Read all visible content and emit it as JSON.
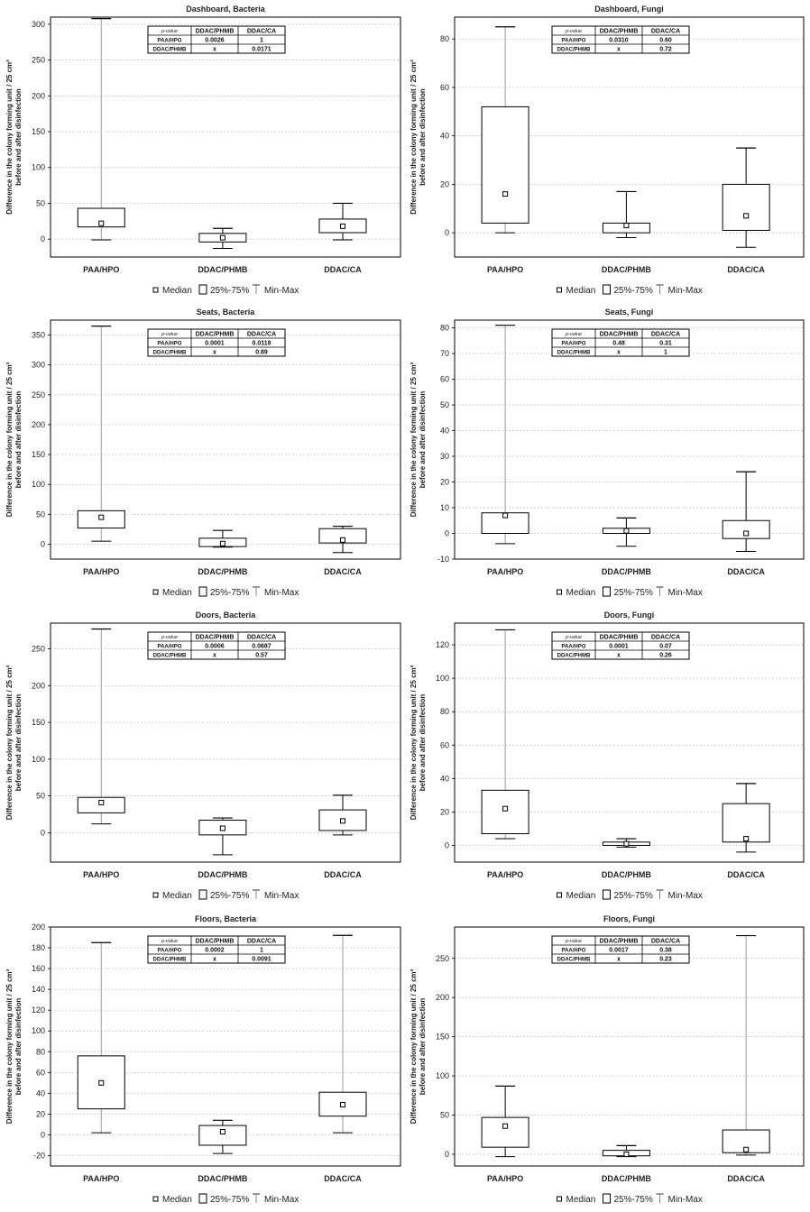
{
  "figure": {
    "ylabel_line1": "Difference in the colony forming unit / 25 cm²",
    "ylabel_line2": "before and after disinfection",
    "legend": {
      "median": "Median",
      "box": "25%-75%",
      "whisker": "Min-Max"
    },
    "pvalue_header": "p-value",
    "colors": {
      "frame": "#000000",
      "grid": "#bdbdbd",
      "box_stroke": "#000000",
      "whisker_light": "#9a9a9a"
    }
  },
  "chart_data": [
    {
      "type": "box",
      "title": "Dashboard, Bacteria",
      "categories": [
        "PAA/HPO",
        "DDAC/PHMB",
        "DDAC/CA"
      ],
      "ylim": [
        -25,
        310
      ],
      "yticks": [
        0,
        50,
        100,
        150,
        200,
        250,
        300
      ],
      "boxes": [
        {
          "min": -1,
          "q1": 17,
          "median": 22,
          "q3": 43,
          "max": 308
        },
        {
          "min": -13,
          "q1": -4,
          "median": 2,
          "q3": 8,
          "max": 15
        },
        {
          "min": -1,
          "q1": 9,
          "median": 18,
          "q3": 28,
          "max": 50
        }
      ],
      "pvalue_table": {
        "cols": [
          "DDAC/PHMB",
          "DDAC/CA"
        ],
        "rows": [
          {
            "label": "PAA/HPO",
            "values": [
              "0.0026",
              "1"
            ]
          },
          {
            "label": "DDAC/PHMB",
            "values": [
              "x",
              "0.0171"
            ]
          }
        ]
      }
    },
    {
      "type": "box",
      "title": "Dashboard, Fungi",
      "categories": [
        "PAA/HPO",
        "DDAC/PHMB",
        "DDAC/CA"
      ],
      "ylim": [
        -10,
        89
      ],
      "yticks": [
        0,
        20,
        40,
        60,
        80
      ],
      "boxes": [
        {
          "min": 0,
          "q1": 4,
          "median": 16,
          "q3": 52,
          "max": 85
        },
        {
          "min": -2,
          "q1": 0,
          "median": 3,
          "q3": 4,
          "max": 17
        },
        {
          "min": -6,
          "q1": 1,
          "median": 7,
          "q3": 20,
          "max": 35
        }
      ],
      "pvalue_table": {
        "cols": [
          "DDAC/PHMB",
          "DDAC/CA"
        ],
        "rows": [
          {
            "label": "PAA/HPO",
            "values": [
              "0.0310",
              "0.60"
            ]
          },
          {
            "label": "DDAC/PHMB",
            "values": [
              "x",
              "0.72"
            ]
          }
        ]
      }
    },
    {
      "type": "box",
      "title": "Seats, Bacteria",
      "categories": [
        "PAA/HPO",
        "DDAC/PHMB",
        "DDAC/CA"
      ],
      "ylim": [
        -25,
        375
      ],
      "yticks": [
        0,
        50,
        100,
        150,
        200,
        250,
        300,
        350
      ],
      "boxes": [
        {
          "min": 5,
          "q1": 27,
          "median": 45,
          "q3": 56,
          "max": 365
        },
        {
          "min": -5,
          "q1": -4,
          "median": 1,
          "q3": 10,
          "max": 23
        },
        {
          "min": -14,
          "q1": 2,
          "median": 7,
          "q3": 26,
          "max": 30
        }
      ],
      "pvalue_table": {
        "cols": [
          "DDAC/PHMB",
          "DDAC/CA"
        ],
        "rows": [
          {
            "label": "PAA/HPO",
            "values": [
              "0.0001",
              "0.0118"
            ]
          },
          {
            "label": "DDAC/PHMB",
            "values": [
              "x",
              "0.89"
            ]
          }
        ]
      }
    },
    {
      "type": "box",
      "title": "Seats, Fungi",
      "categories": [
        "PAA/HPO",
        "DDAC/PHMB",
        "DDAC/CA"
      ],
      "ylim": [
        -10,
        83
      ],
      "yticks": [
        -10,
        0,
        10,
        20,
        30,
        40,
        50,
        60,
        70,
        80
      ],
      "boxes": [
        {
          "min": -4,
          "q1": 0,
          "median": 7,
          "q3": 8,
          "max": 81
        },
        {
          "min": -5,
          "q1": 0,
          "median": 1,
          "q3": 2,
          "max": 6
        },
        {
          "min": -7,
          "q1": -2,
          "median": 0,
          "q3": 5,
          "max": 24
        }
      ],
      "pvalue_table": {
        "cols": [
          "DDAC/PHMB",
          "DDAC/CA"
        ],
        "rows": [
          {
            "label": "PAA/HPO",
            "values": [
              "0.48",
              "0.31"
            ]
          },
          {
            "label": "DDAC/PHMB",
            "values": [
              "x",
              "1"
            ]
          }
        ]
      }
    },
    {
      "type": "box",
      "title": "Doors, Bacteria",
      "categories": [
        "PAA/HPO",
        "DDAC/PHMB",
        "DDAC/CA"
      ],
      "ylim": [
        -40,
        285
      ],
      "yticks": [
        0,
        50,
        100,
        150,
        200,
        250
      ],
      "boxes": [
        {
          "min": 12,
          "q1": 27,
          "median": 41,
          "q3": 48,
          "max": 277
        },
        {
          "min": -30,
          "q1": -3,
          "median": 6,
          "q3": 17,
          "max": 20
        },
        {
          "min": -3,
          "q1": 3,
          "median": 16,
          "q3": 31,
          "max": 51
        }
      ],
      "pvalue_table": {
        "cols": [
          "DDAC/PHMB",
          "DDAC/CA"
        ],
        "rows": [
          {
            "label": "PAA/HPO",
            "values": [
              "0.0006",
              "0.0687"
            ]
          },
          {
            "label": "DDAC/PHMB",
            "values": [
              "x",
              "0.57"
            ]
          }
        ]
      }
    },
    {
      "type": "box",
      "title": "Doors, Fungi",
      "categories": [
        "PAA/HPO",
        "DDAC/PHMB",
        "DDAC/CA"
      ],
      "ylim": [
        -10,
        133
      ],
      "yticks": [
        0,
        20,
        40,
        60,
        80,
        100,
        120
      ],
      "boxes": [
        {
          "min": 4,
          "q1": 7,
          "median": 22,
          "q3": 33,
          "max": 129
        },
        {
          "min": -1,
          "q1": 0,
          "median": 1,
          "q3": 2,
          "max": 4
        },
        {
          "min": -4,
          "q1": 2,
          "median": 4,
          "q3": 25,
          "max": 37
        }
      ],
      "pvalue_table": {
        "cols": [
          "DDAC/PHMB",
          "DDAC/CA"
        ],
        "rows": [
          {
            "label": "PAA/HPO",
            "values": [
              "0.0001",
              "0.07"
            ]
          },
          {
            "label": "DDAC/PHMB",
            "values": [
              "x",
              "0.26"
            ]
          }
        ]
      }
    },
    {
      "type": "box",
      "title": "Floors, Bacteria",
      "categories": [
        "PAA/HPO",
        "DDAC/PHMB",
        "DDAC/CA"
      ],
      "ylim": [
        -30,
        200
      ],
      "yticks": [
        -20,
        0,
        20,
        40,
        60,
        80,
        100,
        120,
        140,
        160,
        180,
        200
      ],
      "boxes": [
        {
          "min": 2,
          "q1": 25,
          "median": 50,
          "q3": 76,
          "max": 185
        },
        {
          "min": -18,
          "q1": -10,
          "median": 3,
          "q3": 9,
          "max": 14
        },
        {
          "min": 2,
          "q1": 18,
          "median": 29,
          "q3": 41,
          "max": 192
        }
      ],
      "pvalue_table": {
        "cols": [
          "DDAC/PHMB",
          "DDAC/CA"
        ],
        "rows": [
          {
            "label": "PAA/HPO",
            "values": [
              "0.0002",
              "1"
            ]
          },
          {
            "label": "DDAC/PHMB",
            "values": [
              "x",
              "0.0091"
            ]
          }
        ]
      }
    },
    {
      "type": "box",
      "title": "Floors, Fungi",
      "categories": [
        "PAA/HPO",
        "DDAC/PHMB",
        "DDAC/CA"
      ],
      "ylim": [
        -15,
        290
      ],
      "yticks": [
        0,
        50,
        100,
        150,
        200,
        250
      ],
      "boxes": [
        {
          "min": -3,
          "q1": 9,
          "median": 36,
          "q3": 47,
          "max": 87
        },
        {
          "min": -3,
          "q1": -2,
          "median": 0,
          "q3": 5,
          "max": 11
        },
        {
          "min": -1,
          "q1": 2,
          "median": 6,
          "q3": 31,
          "max": 279
        }
      ],
      "pvalue_table": {
        "cols": [
          "DDAC/PHMB",
          "DDAC/CA"
        ],
        "rows": [
          {
            "label": "PAA/HPO",
            "values": [
              "0.0017",
              "0.38"
            ]
          },
          {
            "label": "DDAC/PHMB",
            "values": [
              "x",
              "0.23"
            ]
          }
        ]
      }
    }
  ]
}
